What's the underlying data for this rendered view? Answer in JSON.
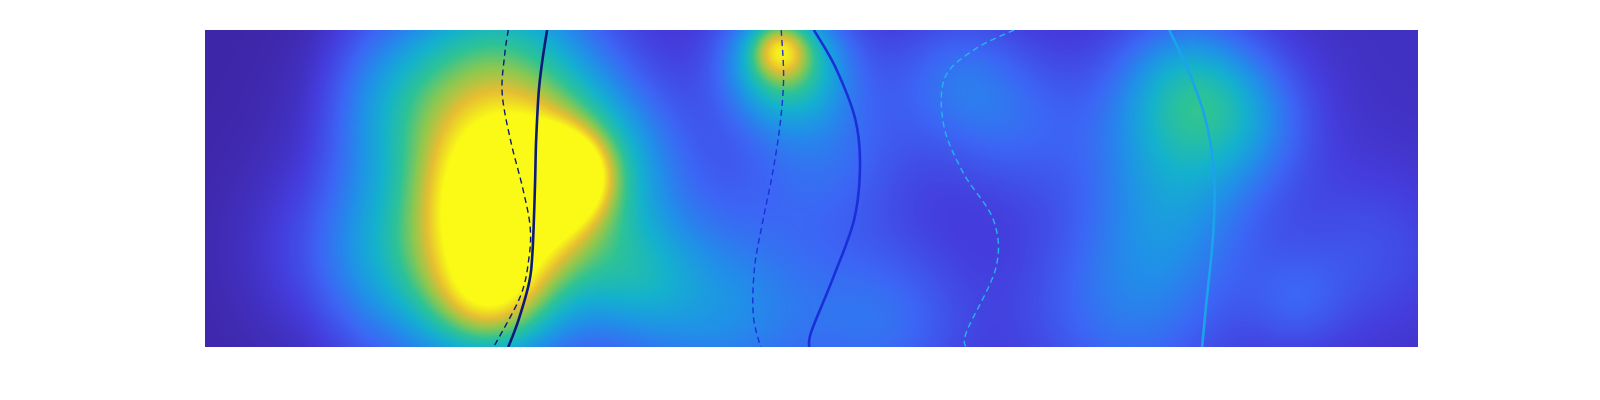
{
  "chart_data": {
    "type": "heatmap",
    "title": "",
    "xlabel": "",
    "ylabel": "",
    "xlim": [
      0,
      1
    ],
    "ylim": [
      0,
      1
    ],
    "grid": false,
    "legend": "none",
    "colormap": "parula",
    "axes_visible": false,
    "background_level": 0.06,
    "hotspots": [
      {
        "x": 0.118,
        "y": 0.3,
        "sigma": 0.055,
        "intensity": 0.18
      },
      {
        "x": 0.16,
        "y": 0.78,
        "sigma": 0.045,
        "intensity": 0.22
      },
      {
        "x": 0.24,
        "y": 0.95,
        "sigma": 0.055,
        "intensity": 0.3
      },
      {
        "x": 0.25,
        "y": 0.7,
        "sigma": 0.06,
        "intensity": 0.3
      },
      {
        "x": 0.24,
        "y": 0.42,
        "sigma": 0.07,
        "intensity": 0.4
      },
      {
        "x": 0.22,
        "y": 0.2,
        "sigma": 0.055,
        "intensity": 0.35
      },
      {
        "x": 0.236,
        "y": 0.16,
        "sigma": 0.03,
        "intensity": 0.3
      },
      {
        "x": 0.254,
        "y": 0.47,
        "sigma": 0.045,
        "intensity": 0.6
      },
      {
        "x": 0.296,
        "y": 0.54,
        "sigma": 0.022,
        "intensity": 0.7
      },
      {
        "x": 0.33,
        "y": 0.58,
        "sigma": 0.05,
        "intensity": 0.25
      },
      {
        "x": 0.355,
        "y": 0.22,
        "sigma": 0.035,
        "intensity": 0.2
      },
      {
        "x": 0.425,
        "y": 0.12,
        "sigma": 0.06,
        "intensity": 0.3
      },
      {
        "x": 0.478,
        "y": 0.9,
        "sigma": 0.035,
        "intensity": 0.55
      },
      {
        "x": 0.474,
        "y": 0.94,
        "sigma": 0.016,
        "intensity": 0.35
      },
      {
        "x": 0.51,
        "y": 0.62,
        "sigma": 0.05,
        "intensity": 0.2
      },
      {
        "x": 0.56,
        "y": 0.08,
        "sigma": 0.05,
        "intensity": 0.2
      },
      {
        "x": 0.62,
        "y": 0.85,
        "sigma": 0.04,
        "intensity": 0.18
      },
      {
        "x": 0.76,
        "y": 0.12,
        "sigma": 0.06,
        "intensity": 0.22
      },
      {
        "x": 0.8,
        "y": 0.4,
        "sigma": 0.05,
        "intensity": 0.18
      },
      {
        "x": 0.81,
        "y": 0.85,
        "sigma": 0.04,
        "intensity": 0.25
      },
      {
        "x": 0.8,
        "y": 0.68,
        "sigma": 0.05,
        "intensity": 0.25
      },
      {
        "x": 0.86,
        "y": 0.72,
        "sigma": 0.04,
        "intensity": 0.2
      },
      {
        "x": 0.9,
        "y": 0.14,
        "sigma": 0.03,
        "intensity": 0.12
      },
      {
        "x": 0.96,
        "y": 0.3,
        "sigma": 0.05,
        "intensity": 0.12
      },
      {
        "x": 0.67,
        "y": 0.7,
        "sigma": 0.045,
        "intensity": 0.15
      }
    ],
    "series": [
      {
        "style": "dashed",
        "color": "#0a1a7a",
        "x": [
          0.25,
          0.247,
          0.245,
          0.252,
          0.262,
          0.268,
          0.267,
          0.26,
          0.238
        ],
        "y": [
          1.0,
          0.92,
          0.8,
          0.65,
          0.5,
          0.38,
          0.28,
          0.16,
          0.0
        ]
      },
      {
        "style": "solid",
        "color": "#0a1a7a",
        "x": [
          0.282,
          0.278,
          0.275,
          0.273,
          0.272,
          0.27,
          0.267,
          0.258,
          0.25
        ],
        "y": [
          1.0,
          0.9,
          0.8,
          0.65,
          0.5,
          0.3,
          0.2,
          0.08,
          0.0
        ]
      },
      {
        "style": "dashed",
        "color": "#1a2fd8",
        "x": [
          0.475,
          0.477,
          0.474,
          0.468,
          0.46,
          0.453,
          0.452,
          0.458
        ],
        "y": [
          1.0,
          0.85,
          0.7,
          0.55,
          0.4,
          0.25,
          0.1,
          0.0
        ]
      },
      {
        "style": "solid",
        "color": "#1a2fd8",
        "x": [
          0.502,
          0.52,
          0.536,
          0.54,
          0.535,
          0.518,
          0.5,
          0.498
        ],
        "y": [
          1.0,
          0.88,
          0.72,
          0.57,
          0.4,
          0.22,
          0.05,
          0.0
        ]
      },
      {
        "style": "dashed",
        "color": "#1fb8ea",
        "x": [
          0.667,
          0.635,
          0.61,
          0.609,
          0.625,
          0.65,
          0.652,
          0.628,
          0.627
        ],
        "y": [
          1.0,
          0.94,
          0.85,
          0.7,
          0.55,
          0.4,
          0.25,
          0.05,
          0.0
        ]
      },
      {
        "style": "solid",
        "color": "#1ba4ea",
        "x": [
          0.795,
          0.813,
          0.826,
          0.832,
          0.831,
          0.825,
          0.822
        ],
        "y": [
          1.0,
          0.85,
          0.7,
          0.53,
          0.35,
          0.12,
          0.0
        ]
      }
    ]
  }
}
